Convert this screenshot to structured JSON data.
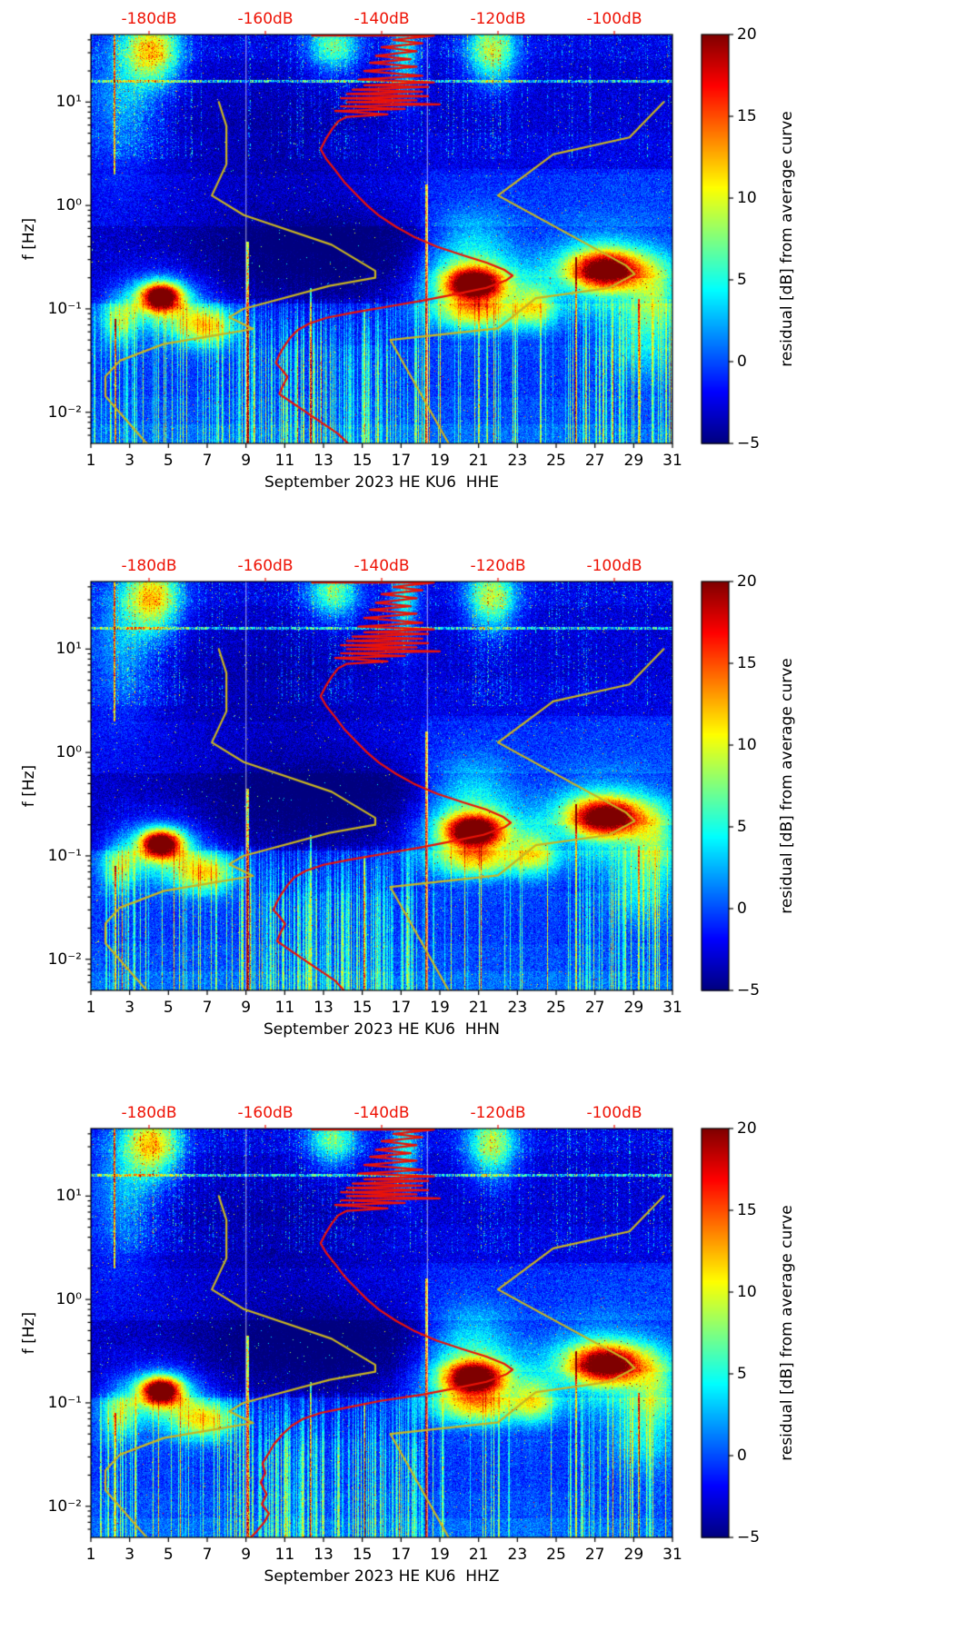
{
  "chart_data": {
    "type": "heatmap",
    "subtype": "seismic-noise-spectrogram-residual",
    "description": "Three daily seismic background-noise spectrograms (residual in dB from an average curve) for station HE KU6, September 2023, channels HHE, HHN and HHZ. A red station median PSD curve and yellow Peterson NLNM/NHNM reference noise-model curves are overlaid, read against the red dB axis on top.",
    "x_axis": {
      "range_days": [
        1,
        31
      ],
      "tick_days": [
        1,
        3,
        5,
        7,
        9,
        11,
        13,
        15,
        17,
        19,
        21,
        23,
        25,
        27,
        29,
        31
      ],
      "tick_labels": [
        "1",
        "3",
        "5",
        "7",
        "9",
        "11",
        "13",
        "15",
        "17",
        "19",
        "21",
        "23",
        "25",
        "27",
        "29",
        "31"
      ]
    },
    "y_axis": {
      "label": "f [Hz]",
      "scale": "log",
      "range_hz": [
        0.005,
        45
      ],
      "tick_values_hz": [
        10,
        1,
        0.1,
        0.01
      ],
      "tick_labels": [
        "10¹",
        "10⁰",
        "10⁻¹",
        "10⁻²"
      ]
    },
    "top_axis": {
      "range_db": [
        -190,
        -90
      ],
      "tick_values_db": [
        -180,
        -160,
        -140,
        -120,
        -100
      ],
      "tick_labels": [
        "-180dB",
        "-160dB",
        "-140dB",
        "-120dB",
        "-100dB"
      ],
      "color": "#ee1205"
    },
    "colorbar": {
      "label": "residual [dB] from average curve",
      "range": [
        -5,
        20
      ],
      "tick_values": [
        20,
        15,
        10,
        5,
        0,
        -5
      ],
      "tick_labels": [
        "20",
        "15",
        "10",
        "5",
        "0",
        "−5"
      ],
      "colormap": "jet"
    },
    "colors": {
      "station_curve": "#ea1308",
      "model_curve": "#c8b422",
      "background": "#ffffff"
    },
    "panels": [
      {
        "title": "September 2023 HE KU6  HHE",
        "channel": "HHE",
        "seed": 101,
        "red_curve_f_db": [
          [
            44,
            -152
          ],
          [
            44,
            -131
          ],
          [
            40,
            -138
          ],
          [
            37,
            -133
          ],
          [
            34,
            -140
          ],
          [
            31,
            -134
          ],
          [
            28,
            -141
          ],
          [
            26,
            -135
          ],
          [
            24,
            -142
          ],
          [
            22,
            -134
          ],
          [
            20,
            -143
          ],
          [
            18,
            -133
          ],
          [
            16.5,
            -144
          ],
          [
            15.5,
            -131
          ],
          [
            14.5,
            -143
          ],
          [
            14,
            -132
          ],
          [
            13.2,
            -145
          ],
          [
            12.6,
            -133
          ],
          [
            12,
            -146
          ],
          [
            11.4,
            -132
          ],
          [
            10.9,
            -147
          ],
          [
            10.4,
            -134
          ],
          [
            10,
            -146
          ],
          [
            9.5,
            -130
          ],
          [
            9.1,
            -147
          ],
          [
            8.6,
            -136
          ],
          [
            8.2,
            -148
          ],
          [
            7.6,
            -139
          ],
          [
            7.2,
            -146
          ],
          [
            6.5,
            -147.5
          ],
          [
            5.5,
            -148.5
          ],
          [
            4.5,
            -149.5
          ],
          [
            3.5,
            -150.5
          ],
          [
            2.8,
            -149.5
          ],
          [
            2.2,
            -148
          ],
          [
            1.7,
            -146.5
          ],
          [
            1.3,
            -144.5
          ],
          [
            1,
            -142.5
          ],
          [
            0.8,
            -140.5
          ],
          [
            0.62,
            -137.5
          ],
          [
            0.5,
            -134.5
          ],
          [
            0.4,
            -130.5
          ],
          [
            0.33,
            -126
          ],
          [
            0.28,
            -122
          ],
          [
            0.24,
            -119
          ],
          [
            0.21,
            -117.5
          ],
          [
            0.19,
            -118.5
          ],
          [
            0.16,
            -122
          ],
          [
            0.14,
            -127
          ],
          [
            0.12,
            -133
          ],
          [
            0.105,
            -139
          ],
          [
            0.092,
            -145
          ],
          [
            0.082,
            -149.5
          ],
          [
            0.072,
            -152.5
          ],
          [
            0.062,
            -154.5
          ],
          [
            0.052,
            -155.8
          ],
          [
            0.043,
            -156.8
          ],
          [
            0.036,
            -157.6
          ],
          [
            0.03,
            -158.2
          ],
          [
            0.026,
            -157.2
          ],
          [
            0.022,
            -156.2
          ],
          [
            0.018,
            -157
          ],
          [
            0.015,
            -157.6
          ],
          [
            0.0125,
            -155.5
          ],
          [
            0.0105,
            -153.5
          ],
          [
            0.0088,
            -151.5
          ],
          [
            0.0074,
            -149.5
          ],
          [
            0.0062,
            -147.5
          ],
          [
            0.005,
            -145.8
          ]
        ]
      },
      {
        "title": "September 2023 HE KU6  HHN",
        "channel": "HHN",
        "seed": 202,
        "red_curve_f_db": [
          [
            44,
            -152
          ],
          [
            44,
            -131
          ],
          [
            40,
            -138
          ],
          [
            37,
            -133
          ],
          [
            34,
            -140
          ],
          [
            31,
            -134
          ],
          [
            28,
            -141
          ],
          [
            26,
            -135
          ],
          [
            24,
            -142
          ],
          [
            22,
            -134
          ],
          [
            20,
            -143
          ],
          [
            18,
            -133
          ],
          [
            16.5,
            -144
          ],
          [
            15.5,
            -131
          ],
          [
            14.5,
            -143
          ],
          [
            14,
            -132
          ],
          [
            13.2,
            -145
          ],
          [
            12.6,
            -133
          ],
          [
            12,
            -146
          ],
          [
            11.4,
            -132
          ],
          [
            10.9,
            -147
          ],
          [
            10.4,
            -134
          ],
          [
            10,
            -146
          ],
          [
            9.5,
            -130
          ],
          [
            9.1,
            -147
          ],
          [
            8.6,
            -136
          ],
          [
            8.2,
            -148
          ],
          [
            7.6,
            -139
          ],
          [
            7.2,
            -146
          ],
          [
            6.5,
            -147.5
          ],
          [
            5.5,
            -148.5
          ],
          [
            4.5,
            -149.5
          ],
          [
            3.5,
            -150.5
          ],
          [
            2.8,
            -149.5
          ],
          [
            2.2,
            -148
          ],
          [
            1.7,
            -146.5
          ],
          [
            1.3,
            -144.5
          ],
          [
            1,
            -142.5
          ],
          [
            0.8,
            -140.5
          ],
          [
            0.62,
            -137.5
          ],
          [
            0.5,
            -134.5
          ],
          [
            0.4,
            -130.5
          ],
          [
            0.33,
            -126
          ],
          [
            0.28,
            -122
          ],
          [
            0.24,
            -119.2
          ],
          [
            0.21,
            -117.8
          ],
          [
            0.19,
            -118.8
          ],
          [
            0.16,
            -122.5
          ],
          [
            0.14,
            -127.5
          ],
          [
            0.12,
            -133.5
          ],
          [
            0.105,
            -139.5
          ],
          [
            0.092,
            -145.5
          ],
          [
            0.082,
            -150
          ],
          [
            0.072,
            -153
          ],
          [
            0.062,
            -155
          ],
          [
            0.052,
            -156.2
          ],
          [
            0.043,
            -157.2
          ],
          [
            0.036,
            -158
          ],
          [
            0.03,
            -158.6
          ],
          [
            0.026,
            -157.6
          ],
          [
            0.022,
            -156.6
          ],
          [
            0.018,
            -157.4
          ],
          [
            0.015,
            -158
          ],
          [
            0.0125,
            -156
          ],
          [
            0.0105,
            -154
          ],
          [
            0.0088,
            -152
          ],
          [
            0.0074,
            -150
          ],
          [
            0.0062,
            -148
          ],
          [
            0.005,
            -146.5
          ]
        ]
      },
      {
        "title": "September 2023 HE KU6  HHZ",
        "channel": "HHZ",
        "seed": 303,
        "red_curve_f_db": [
          [
            44,
            -152
          ],
          [
            44,
            -131
          ],
          [
            40,
            -138
          ],
          [
            37,
            -133
          ],
          [
            34,
            -140
          ],
          [
            31,
            -134
          ],
          [
            28,
            -141
          ],
          [
            26,
            -135
          ],
          [
            24,
            -142
          ],
          [
            22,
            -134
          ],
          [
            20,
            -143
          ],
          [
            18,
            -133
          ],
          [
            16.5,
            -144
          ],
          [
            15.5,
            -131
          ],
          [
            14.5,
            -143
          ],
          [
            14,
            -132
          ],
          [
            13.2,
            -145
          ],
          [
            12.6,
            -133
          ],
          [
            12,
            -146
          ],
          [
            11.4,
            -132
          ],
          [
            10.9,
            -147
          ],
          [
            10.4,
            -134
          ],
          [
            10,
            -146
          ],
          [
            9.5,
            -130
          ],
          [
            9.1,
            -147
          ],
          [
            8.6,
            -136
          ],
          [
            8.2,
            -148
          ],
          [
            7.6,
            -139
          ],
          [
            7.2,
            -146
          ],
          [
            6.5,
            -147.5
          ],
          [
            5.5,
            -148.5
          ],
          [
            4.5,
            -149.5
          ],
          [
            3.5,
            -150.5
          ],
          [
            2.8,
            -149.5
          ],
          [
            2.2,
            -148
          ],
          [
            1.7,
            -146.5
          ],
          [
            1.3,
            -144.5
          ],
          [
            1,
            -142.5
          ],
          [
            0.8,
            -140.5
          ],
          [
            0.62,
            -137.5
          ],
          [
            0.5,
            -134.5
          ],
          [
            0.4,
            -130.5
          ],
          [
            0.33,
            -126
          ],
          [
            0.28,
            -122
          ],
          [
            0.24,
            -119
          ],
          [
            0.21,
            -117.5
          ],
          [
            0.19,
            -118.5
          ],
          [
            0.16,
            -122
          ],
          [
            0.14,
            -127
          ],
          [
            0.12,
            -133
          ],
          [
            0.105,
            -140
          ],
          [
            0.09,
            -146
          ],
          [
            0.08,
            -150.5
          ],
          [
            0.07,
            -153.5
          ],
          [
            0.06,
            -155.5
          ],
          [
            0.05,
            -157
          ],
          [
            0.04,
            -158.5
          ],
          [
            0.032,
            -159.5
          ],
          [
            0.026,
            -160.5
          ],
          [
            0.021,
            -160
          ],
          [
            0.017,
            -160.8
          ],
          [
            0.013,
            -159.8
          ],
          [
            0.0105,
            -160.6
          ],
          [
            0.0085,
            -159.4
          ],
          [
            0.007,
            -160.2
          ],
          [
            0.0058,
            -161.4
          ],
          [
            0.005,
            -162.5
          ]
        ]
      }
    ],
    "noise_models": {
      "nlnm_f_db": [
        [
          10,
          -168
        ],
        [
          5.88,
          -166.7
        ],
        [
          2.5,
          -166.7
        ],
        [
          1.25,
          -169.2
        ],
        [
          0.806,
          -163.7
        ],
        [
          0.417,
          -148.6
        ],
        [
          0.233,
          -141.1
        ],
        [
          0.2,
          -141.1
        ],
        [
          0.167,
          -149
        ],
        [
          0.1,
          -163.8
        ],
        [
          0.083,
          -166.2
        ],
        [
          0.064,
          -162.1
        ],
        [
          0.0457,
          -177.5
        ],
        [
          0.0316,
          -185
        ],
        [
          0.0222,
          -187.5
        ],
        [
          0.0143,
          -187.5
        ],
        [
          0.01,
          -185.1
        ],
        [
          0.005,
          -180.4
        ]
      ],
      "nhnm_f_db": [
        [
          10,
          -91.5
        ],
        [
          4.55,
          -97.4
        ],
        [
          3.125,
          -110.5
        ],
        [
          1.25,
          -120
        ],
        [
          0.263,
          -98
        ],
        [
          0.217,
          -96.5
        ],
        [
          0.159,
          -101
        ],
        [
          0.127,
          -113.5
        ],
        [
          0.0649,
          -120
        ],
        [
          0.05,
          -138.5
        ],
        [
          0.01,
          -131.5
        ],
        [
          0.005,
          -128.5
        ]
      ]
    },
    "spectrogram_features": {
      "comment": "blobs: [day_center, day_sigma, log10f_center, log10f_sigma, amplitude_dB]; events: [day, log10f_min, log10f_max, amplitude_dB]",
      "blobs": [
        [
          4.6,
          0.75,
          -0.88,
          0.09,
          23
        ],
        [
          4.6,
          1.6,
          -0.93,
          0.2,
          8
        ],
        [
          6.9,
          1.1,
          -1.17,
          0.13,
          11
        ],
        [
          2.4,
          0.6,
          -1.12,
          0.16,
          7
        ],
        [
          20.8,
          1.1,
          -0.76,
          0.11,
          21
        ],
        [
          20.4,
          2.0,
          -0.82,
          0.22,
          8
        ],
        [
          27.6,
          1.3,
          -0.63,
          0.13,
          19
        ],
        [
          27.4,
          2.4,
          -0.66,
          0.28,
          8
        ],
        [
          23.9,
          0.8,
          -0.97,
          0.16,
          9
        ],
        [
          30.2,
          0.9,
          -0.85,
          0.22,
          7
        ],
        [
          21.0,
          1.5,
          -1.05,
          0.12,
          8
        ],
        [
          4.2,
          1.0,
          1.5,
          0.22,
          13
        ],
        [
          13.5,
          0.9,
          1.55,
          0.18,
          9
        ],
        [
          21.7,
          0.9,
          1.5,
          0.22,
          11
        ],
        [
          2.6,
          1.3,
          1.05,
          0.45,
          5
        ],
        [
          17.2,
          0.5,
          1.45,
          0.3,
          7
        ],
        [
          20.6,
          1.6,
          -0.4,
          0.25,
          6
        ],
        [
          13.0,
          4.5,
          -0.45,
          0.3,
          -3.5
        ],
        [
          10.0,
          4.0,
          0.45,
          0.5,
          -1.5
        ],
        [
          29.5,
          1.2,
          -1.3,
          0.25,
          5
        ]
      ],
      "events": [
        [
          2.2,
          0.3,
          1.66,
          12
        ],
        [
          2.25,
          -2.31,
          -1.1,
          10
        ],
        [
          9.07,
          -2.31,
          -0.35,
          15
        ],
        [
          18.33,
          -2.31,
          0.2,
          13
        ],
        [
          12.35,
          -2.31,
          -0.8,
          9
        ],
        [
          26.05,
          -2.31,
          -0.5,
          9
        ],
        [
          15.1,
          -2.31,
          -1.0,
          7
        ],
        [
          29.3,
          -2.31,
          -0.9,
          8
        ]
      ],
      "gap_days": [
        8.97,
        18.33
      ],
      "persistent_line_hz": 16
    }
  }
}
